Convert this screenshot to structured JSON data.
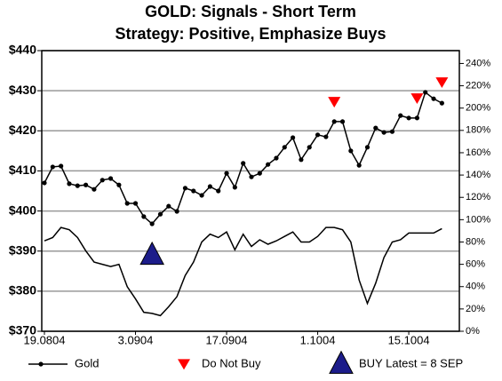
{
  "chart_data": {
    "type": "line",
    "title": "GOLD: Signals - Short Term",
    "subtitle": "Strategy: Positive, Emphasize Buys",
    "categories": [
      "19.0804",
      null,
      null,
      null,
      null,
      null,
      null,
      null,
      null,
      null,
      null,
      "3.0904",
      null,
      null,
      null,
      null,
      null,
      null,
      null,
      null,
      null,
      null,
      "17.0904",
      null,
      null,
      null,
      null,
      null,
      null,
      null,
      null,
      null,
      null,
      "1.1004",
      null,
      null,
      null,
      null,
      null,
      null,
      null,
      null,
      null,
      null,
      "15.1004",
      null,
      null,
      null,
      null
    ],
    "series": [
      {
        "name": "Gold",
        "color": "#000000",
        "marker": "circle",
        "line": true,
        "values": [
          407.0,
          411.0,
          411.2,
          406.8,
          406.3,
          406.5,
          405.4,
          407.7,
          408.1,
          406.5,
          401.9,
          401.9,
          398.6,
          396.8,
          399.2,
          401.2,
          399.9,
          405.7,
          405.0,
          403.9,
          406.1,
          405.0,
          409.4,
          405.9,
          411.9,
          408.5,
          409.4,
          411.6,
          413.2,
          415.9,
          418.3,
          412.8,
          415.9,
          419.0,
          418.5,
          422.3,
          422.3,
          415.0,
          411.4,
          415.9,
          420.7,
          419.6,
          419.8,
          423.8,
          423.2,
          423.2,
          429.6,
          428.0,
          426.9
        ]
      },
      {
        "color": "#000000",
        "marker": "none",
        "line": true,
        "axis": "y2",
        "values": [
          81,
          84,
          93,
          91,
          84,
          72,
          62,
          60,
          58,
          60,
          40,
          29,
          17,
          16,
          14,
          22,
          31,
          50,
          62,
          80,
          87,
          84,
          89,
          73,
          87,
          76,
          82,
          78,
          81,
          85,
          89,
          80,
          80,
          85,
          93,
          93,
          91,
          80,
          46,
          25,
          43,
          66,
          80,
          82,
          88,
          88,
          88,
          88,
          92
        ]
      },
      {
        "name": "Do Not Buy",
        "color": "#ff0000",
        "marker": "triangle-down",
        "marker_size": 7,
        "line": false,
        "values": [
          null,
          null,
          null,
          null,
          null,
          null,
          null,
          null,
          null,
          null,
          null,
          null,
          null,
          null,
          null,
          null,
          null,
          null,
          null,
          null,
          null,
          null,
          null,
          null,
          null,
          null,
          null,
          null,
          null,
          null,
          null,
          null,
          null,
          null,
          null,
          427.2,
          null,
          null,
          null,
          null,
          null,
          null,
          null,
          null,
          null,
          428.1,
          null,
          null,
          432.1
        ]
      },
      {
        "name": "BUY Latest = 8 SEP",
        "color": "#1c1c8a",
        "marker": "triangle-up",
        "marker_size": 13,
        "line": false,
        "values": [
          null,
          null,
          null,
          null,
          null,
          null,
          null,
          null,
          null,
          null,
          null,
          null,
          null,
          389.0,
          null,
          null,
          null,
          null,
          null,
          null,
          null,
          null,
          null,
          null,
          null,
          null,
          null,
          null,
          null,
          null,
          null,
          null,
          null,
          null,
          null,
          null,
          null,
          null,
          null,
          null,
          null,
          null,
          null,
          null,
          null,
          null,
          null,
          null,
          null
        ]
      }
    ],
    "ylim": [
      370,
      440
    ],
    "yticks": [
      {
        "value": 370,
        "label": "$370"
      },
      {
        "value": 380,
        "label": "$380"
      },
      {
        "value": 390,
        "label": "$390"
      },
      {
        "value": 400,
        "label": "$400"
      },
      {
        "value": 410,
        "label": "$410"
      },
      {
        "value": 420,
        "label": "$420"
      },
      {
        "value": 430,
        "label": "$430"
      },
      {
        "value": 440,
        "label": "$440"
      }
    ],
    "y2lim": [
      0,
      251.5
    ],
    "y2ticks": [
      {
        "value": 0,
        "label": "0%"
      },
      {
        "value": 20,
        "label": "20%"
      },
      {
        "value": 40,
        "label": "40%"
      },
      {
        "value": 60,
        "label": "60%"
      },
      {
        "value": 80,
        "label": "80%"
      },
      {
        "value": 100,
        "label": "100%"
      },
      {
        "value": 120,
        "label": "120%"
      },
      {
        "value": 140,
        "label": "140%"
      },
      {
        "value": 160,
        "label": "160%"
      },
      {
        "value": 180,
        "label": "180%"
      },
      {
        "value": 200,
        "label": "200%"
      },
      {
        "value": 220,
        "label": "220%"
      },
      {
        "value": 240,
        "label": "240%"
      }
    ],
    "grid": true
  }
}
